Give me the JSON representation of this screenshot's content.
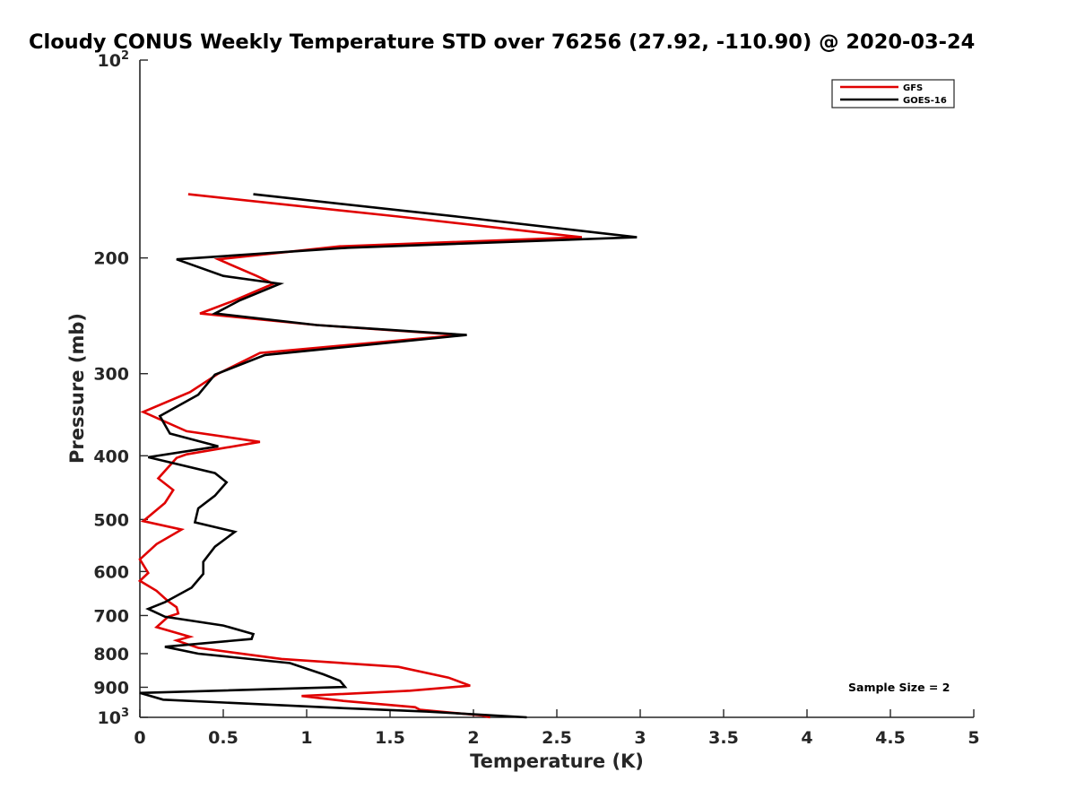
{
  "chart_data": {
    "type": "line",
    "title": "Cloudy CONUS Weekly Temperature STD over 76256 (27.92, -110.90) @ 2020-03-24",
    "xlabel": "Temperature (K)",
    "ylabel": "Pressure (mb)",
    "xlim": [
      0,
      5
    ],
    "ylim": [
      100,
      1000
    ],
    "yscale": "log",
    "y_reversed": true,
    "x_ticks": [
      "0",
      "0.5",
      "1",
      "1.5",
      "2",
      "2.5",
      "3",
      "3.5",
      "4",
      "4.5",
      "5"
    ],
    "y_ticks": [
      {
        "value": 100,
        "label": "10",
        "exp": "2"
      },
      {
        "value": 200,
        "label": "200"
      },
      {
        "value": 300,
        "label": "300"
      },
      {
        "value": 400,
        "label": "400"
      },
      {
        "value": 500,
        "label": "500"
      },
      {
        "value": 600,
        "label": "600"
      },
      {
        "value": 700,
        "label": "700"
      },
      {
        "value": 800,
        "label": "800"
      },
      {
        "value": 900,
        "label": "900"
      },
      {
        "value": 1000,
        "label": "10",
        "exp": "3"
      }
    ],
    "legend_position": "top-right",
    "annotation": "Sample Size = 2",
    "series": [
      {
        "name": "GFS",
        "color": "#e00000",
        "points": [
          [
            0.29,
            160
          ],
          [
            1.55,
            173
          ],
          [
            2.65,
            186
          ],
          [
            1.2,
            192
          ],
          [
            0.47,
            201
          ],
          [
            0.7,
            213
          ],
          [
            0.8,
            219
          ],
          [
            0.55,
            233
          ],
          [
            0.36,
            243
          ],
          [
            1.06,
            253
          ],
          [
            1.92,
            262
          ],
          [
            0.72,
            279
          ],
          [
            0.47,
            300
          ],
          [
            0.3,
            320
          ],
          [
            0.02,
            343
          ],
          [
            0.28,
            367
          ],
          [
            0.72,
            381
          ],
          [
            0.28,
            398
          ],
          [
            0.22,
            403
          ],
          [
            0.11,
            433
          ],
          [
            0.2,
            451
          ],
          [
            0.15,
            472
          ],
          [
            0.02,
            503
          ],
          [
            0.25,
            518
          ],
          [
            0.1,
            545
          ],
          [
            0.0,
            575
          ],
          [
            0.05,
            603
          ],
          [
            0.0,
            620
          ],
          [
            0.1,
            642
          ],
          [
            0.17,
            666
          ],
          [
            0.22,
            680
          ],
          [
            0.23,
            695
          ],
          [
            0.17,
            703
          ],
          [
            0.1,
            729
          ],
          [
            0.3,
            754
          ],
          [
            0.22,
            764
          ],
          [
            0.35,
            784
          ],
          [
            0.85,
            815
          ],
          [
            1.55,
            838
          ],
          [
            1.85,
            870
          ],
          [
            1.98,
            895
          ],
          [
            1.62,
            911
          ],
          [
            0.97,
            928
          ],
          [
            1.22,
            944
          ],
          [
            1.65,
            965
          ],
          [
            1.68,
            974
          ],
          [
            2.05,
            993
          ],
          [
            2.1,
            1000
          ]
        ]
      },
      {
        "name": "GOES-16",
        "color": "#000000",
        "points": [
          [
            0.68,
            160
          ],
          [
            1.9,
            173
          ],
          [
            2.98,
            186
          ],
          [
            1.25,
            193
          ],
          [
            0.22,
            201
          ],
          [
            0.5,
            213
          ],
          [
            0.84,
            219
          ],
          [
            0.6,
            232
          ],
          [
            0.45,
            243
          ],
          [
            1.06,
            253
          ],
          [
            1.96,
            262
          ],
          [
            0.75,
            281
          ],
          [
            0.45,
            301
          ],
          [
            0.35,
            323
          ],
          [
            0.12,
            348
          ],
          [
            0.18,
            370
          ],
          [
            0.47,
            387
          ],
          [
            0.05,
            402
          ],
          [
            0.45,
            425
          ],
          [
            0.52,
            439
          ],
          [
            0.45,
            460
          ],
          [
            0.35,
            481
          ],
          [
            0.33,
            505
          ],
          [
            0.57,
            522
          ],
          [
            0.45,
            550
          ],
          [
            0.38,
            580
          ],
          [
            0.38,
            605
          ],
          [
            0.31,
            635
          ],
          [
            0.15,
            668
          ],
          [
            0.05,
            684
          ],
          [
            0.15,
            703
          ],
          [
            0.5,
            725
          ],
          [
            0.68,
            747
          ],
          [
            0.67,
            760
          ],
          [
            0.15,
            781
          ],
          [
            0.35,
            800
          ],
          [
            0.9,
            827
          ],
          [
            1.1,
            860
          ],
          [
            1.2,
            880
          ],
          [
            1.23,
            899
          ],
          [
            0.0,
            918
          ],
          [
            0.14,
            940
          ],
          [
            1.2,
            968
          ],
          [
            1.72,
            980
          ],
          [
            2.32,
            1000
          ]
        ]
      }
    ]
  }
}
